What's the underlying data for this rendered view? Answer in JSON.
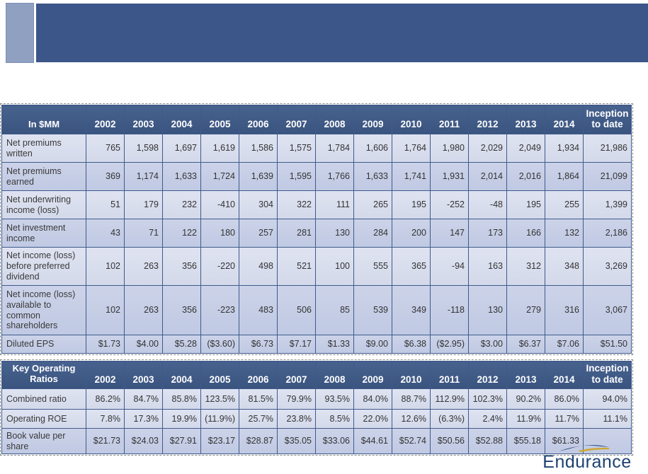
{
  "banner": {
    "bar_color": "#3d5689",
    "accent_color": "#8fa0c1"
  },
  "financial_table": {
    "label_header": "In $MM",
    "columns": [
      "2002",
      "2003",
      "2004",
      "2005",
      "2006",
      "2007",
      "2008",
      "2009",
      "2010",
      "2011",
      "2012",
      "2013",
      "2014",
      "Inception to date"
    ],
    "rows": [
      {
        "label": "Net premiums written",
        "values": [
          "765",
          "1,598",
          "1,697",
          "1,619",
          "1,586",
          "1,575",
          "1,784",
          "1,606",
          "1,764",
          "1,980",
          "2,029",
          "2,049",
          "1,934",
          "21,986"
        ]
      },
      {
        "label": "Net premiums earned",
        "values": [
          "369",
          "1,174",
          "1,633",
          "1,724",
          "1,639",
          "1,595",
          "1,766",
          "1,633",
          "1,741",
          "1,931",
          "2,014",
          "2,016",
          "1,864",
          "21,099"
        ]
      },
      {
        "label": "Net underwriting income (loss)",
        "values": [
          "51",
          "179",
          "232",
          "-410",
          "304",
          "322",
          "111",
          "265",
          "195",
          "-252",
          "-48",
          "195",
          "255",
          "1,399"
        ]
      },
      {
        "label": "Net investment income",
        "values": [
          "43",
          "71",
          "122",
          "180",
          "257",
          "281",
          "130",
          "284",
          "200",
          "147",
          "173",
          "166",
          "132",
          "2,186"
        ]
      },
      {
        "label": "Net income (loss) before preferred dividend",
        "values": [
          "102",
          "263",
          "356",
          "-220",
          "498",
          "521",
          "100",
          "555",
          "365",
          "-94",
          "163",
          "312",
          "348",
          "3,269"
        ]
      },
      {
        "label": "Net income (loss) available to common shareholders",
        "values": [
          "102",
          "263",
          "356",
          "-223",
          "483",
          "506",
          "85",
          "539",
          "349",
          "-118",
          "130",
          "279",
          "316",
          "3,067"
        ]
      },
      {
        "label": "Diluted EPS",
        "values": [
          "$1.73",
          "$4.00",
          "$5.28",
          "($3.60)",
          "$6.73",
          "$7.17",
          "$1.33",
          "$9.00",
          "$6.38",
          "($2.95)",
          "$3.00",
          "$6.37",
          "$7.06",
          "$51.50"
        ]
      }
    ]
  },
  "ratios_table": {
    "label_header": "Key Operating Ratios",
    "columns": [
      "2002",
      "2003",
      "2004",
      "2005",
      "2006",
      "2007",
      "2008",
      "2009",
      "2010",
      "2011",
      "2012",
      "2013",
      "2014",
      "Inception to date"
    ],
    "rows": [
      {
        "label": "Combined ratio",
        "values": [
          "86.2%",
          "84.7%",
          "85.8%",
          "123.5%",
          "81.5%",
          "79.9%",
          "93.5%",
          "84.0%",
          "88.7%",
          "112.9%",
          "102.3%",
          "90.2%",
          "86.0%",
          "94.0%"
        ]
      },
      {
        "label": "Operating ROE",
        "values": [
          "7.8%",
          "17.3%",
          "19.9%",
          "(11.9%)",
          "25.7%",
          "23.8%",
          "8.5%",
          "22.0%",
          "12.6%",
          "(6.3%)",
          "2.4%",
          "11.9%",
          "11.7%",
          "11.1%"
        ]
      },
      {
        "label": "Book value per share",
        "values": [
          "$21.73",
          "$24.03",
          "$27.91",
          "$23.17",
          "$28.87",
          "$35.05",
          "$33.06",
          "$44.61",
          "$52.74",
          "$50.56",
          "$52.88",
          "$55.18",
          "$61.33",
          ""
        ]
      }
    ]
  },
  "logo": {
    "text": "Endurance",
    "text_color": "#1c4273",
    "swoosh_navy": "#1c4273",
    "swoosh_gold": "#d1a62c"
  },
  "colors": {
    "table_border": "#3f5a8c",
    "header_bg": "#3e5a8a",
    "row_light": "#d9deee",
    "row_dark": "#c6cee7"
  }
}
